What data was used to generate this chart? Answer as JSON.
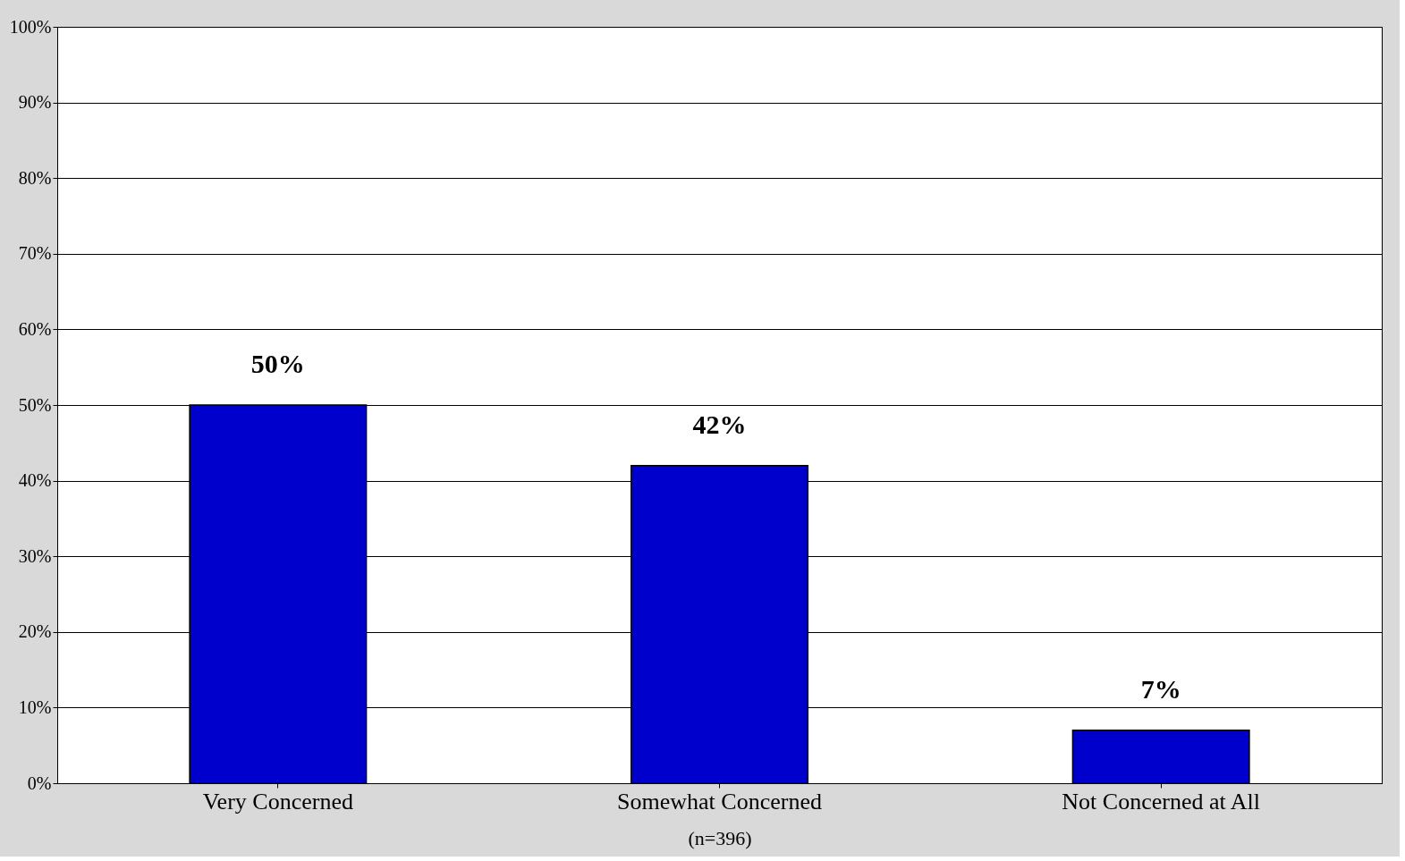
{
  "chart_data": {
    "type": "bar",
    "categories": [
      "Very Concerned",
      "Somewhat Concerned",
      "Not Concerned at All"
    ],
    "values": [
      50,
      42,
      7
    ],
    "color": "#0000cc",
    "value_labels": [
      "50%",
      "42%",
      "7%"
    ],
    "xlabel": "(n=396)",
    "ylim": [
      0,
      100
    ],
    "yticks": [
      {
        "value": 0,
        "label": "0%"
      },
      {
        "value": 10,
        "label": "10%"
      },
      {
        "value": 20,
        "label": "20%"
      },
      {
        "value": 30,
        "label": "30%"
      },
      {
        "value": 40,
        "label": "40%"
      },
      {
        "value": 50,
        "label": "50%"
      },
      {
        "value": 60,
        "label": "60%"
      },
      {
        "value": 70,
        "label": "70%"
      },
      {
        "value": 80,
        "label": "80%"
      },
      {
        "value": 90,
        "label": "90%"
      },
      {
        "value": 100,
        "label": "100%"
      }
    ],
    "grid": "y"
  }
}
